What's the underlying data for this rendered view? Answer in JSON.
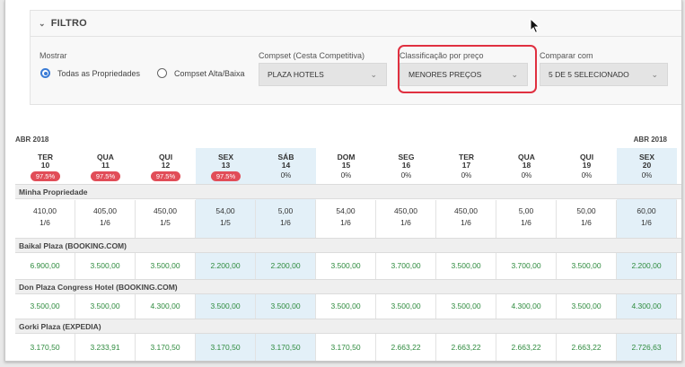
{
  "filter": {
    "title": "FILTRO",
    "mostrar_label": "Mostrar",
    "radio_all": "Todas as Propriedades",
    "radio_compset": "Compset Alta/Baixa",
    "compset_label": "Compset (Cesta Competitiva)",
    "compset_value": "PLAZA HOTELS",
    "classificacao_label": "Classificação por preço",
    "classificacao_value": "MENORES PREÇOS",
    "comparar_label": "Comparar com",
    "comparar_value": "5 DE 5 SELECIONADO"
  },
  "month_left": "ABR 2018",
  "month_right": "ABR 2018",
  "days": [
    {
      "dow": "TER",
      "day": "10",
      "occ": "97.5%",
      "badge": true,
      "hl": false
    },
    {
      "dow": "QUA",
      "day": "11",
      "occ": "97.5%",
      "badge": true,
      "hl": false
    },
    {
      "dow": "QUI",
      "day": "12",
      "occ": "97.5%",
      "badge": true,
      "hl": false
    },
    {
      "dow": "SEX",
      "day": "13",
      "occ": "97.5%",
      "badge": true,
      "hl": true
    },
    {
      "dow": "SÁB",
      "day": "14",
      "occ": "0%",
      "badge": false,
      "hl": true
    },
    {
      "dow": "DOM",
      "day": "15",
      "occ": "0%",
      "badge": false,
      "hl": false
    },
    {
      "dow": "SEG",
      "day": "16",
      "occ": "0%",
      "badge": false,
      "hl": false
    },
    {
      "dow": "TER",
      "day": "17",
      "occ": "0%",
      "badge": false,
      "hl": false
    },
    {
      "dow": "QUA",
      "day": "18",
      "occ": "0%",
      "badge": false,
      "hl": false
    },
    {
      "dow": "QUI",
      "day": "19",
      "occ": "0%",
      "badge": false,
      "hl": false
    },
    {
      "dow": "SEX",
      "day": "20",
      "occ": "0%",
      "badge": false,
      "hl": true
    }
  ],
  "sections": [
    {
      "name": "Minha Propriedade",
      "type": "own",
      "prices": [
        "410,00",
        "405,00",
        "450,00",
        "54,00",
        "5,00",
        "54,00",
        "450,00",
        "450,00",
        "5,00",
        "50,00",
        "60,00"
      ],
      "ranks": [
        "1/6",
        "1/6",
        "1/5",
        "1/5",
        "1/6",
        "1/6",
        "1/6",
        "1/6",
        "1/6",
        "1/6",
        "1/6"
      ]
    },
    {
      "name": "Baikal Plaza (BOOKING.COM)",
      "type": "comp",
      "prices": [
        "6.900,00",
        "3.500,00",
        "3.500,00",
        "2.200,00",
        "2.200,00",
        "3.500,00",
        "3.700,00",
        "3.500,00",
        "3.700,00",
        "3.500,00",
        "2.200,00"
      ]
    },
    {
      "name": "Don Plaza Congress Hotel (BOOKING.COM)",
      "type": "comp",
      "prices": [
        "3.500,00",
        "3.500,00",
        "4.300,00",
        "3.500,00",
        "3.500,00",
        "3.500,00",
        "3.500,00",
        "3.500,00",
        "4.300,00",
        "3.500,00",
        "4.300,00"
      ]
    },
    {
      "name": "Gorki Plaza (EXPEDIA)",
      "type": "comp",
      "prices": [
        "3.170,50",
        "3.233,91",
        "3.170,50",
        "3.170,50",
        "3.170,50",
        "3.170,50",
        "2.663,22",
        "2.663,22",
        "2.663,22",
        "2.663,22",
        "2.726,63"
      ]
    }
  ],
  "colors": {
    "highlight_border": "#e03040",
    "badge": "#e14d58",
    "price_green": "#2e8b3e",
    "col_highlight": "#e3f0f8",
    "radio": "#3a7bd5"
  }
}
